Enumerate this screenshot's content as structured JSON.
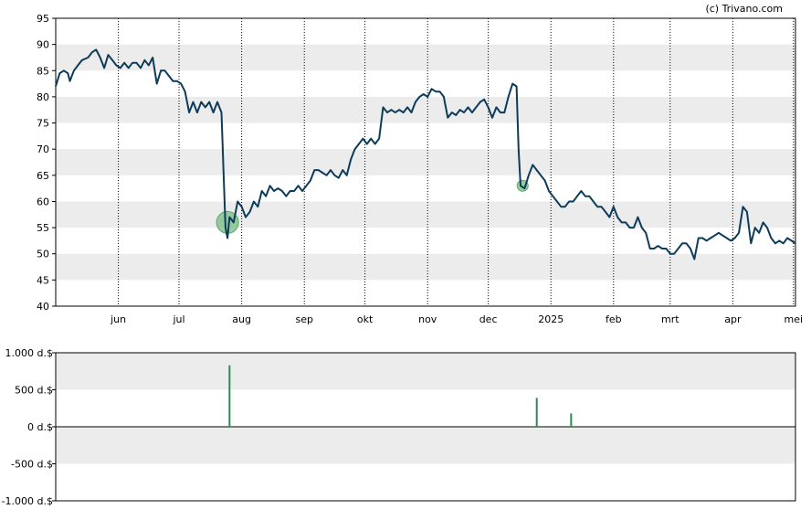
{
  "credit": "(c) Trivano.com",
  "chart_data": [
    {
      "type": "line",
      "title": "",
      "xlabel": "",
      "ylabel": "",
      "ylim": [
        40,
        95
      ],
      "yticks": [
        40,
        45,
        50,
        55,
        60,
        65,
        70,
        75,
        80,
        85,
        90,
        95
      ],
      "x_domain_days": [
        0,
        366
      ],
      "month_ticks": [
        {
          "day": 31,
          "label": "jun"
        },
        {
          "day": 61,
          "label": "jul"
        },
        {
          "day": 92,
          "label": "aug"
        },
        {
          "day": 123,
          "label": "sep"
        },
        {
          "day": 153,
          "label": "okt"
        },
        {
          "day": 184,
          "label": "nov"
        },
        {
          "day": 214,
          "label": "dec"
        },
        {
          "day": 245,
          "label": "2025"
        },
        {
          "day": 276,
          "label": "feb"
        },
        {
          "day": 304,
          "label": "mrt"
        },
        {
          "day": 335,
          "label": "apr"
        },
        {
          "day": 365,
          "label": "mei"
        }
      ],
      "grid": "dotted vertical at months, alternating horizontal bands",
      "line_color": "#0d3b5a",
      "series": [
        {
          "points": [
            [
              0,
              82
            ],
            [
              2,
              84.5
            ],
            [
              4,
              85
            ],
            [
              6,
              84.5
            ],
            [
              7,
              83
            ],
            [
              9,
              85
            ],
            [
              11,
              86
            ],
            [
              13,
              87
            ],
            [
              16,
              87.5
            ],
            [
              18,
              88.5
            ],
            [
              20,
              89
            ],
            [
              22,
              87.5
            ],
            [
              24,
              85.5
            ],
            [
              26,
              88
            ],
            [
              28,
              87
            ],
            [
              30,
              86
            ],
            [
              32,
              85.5
            ],
            [
              34,
              86.5
            ],
            [
              36,
              85.5
            ],
            [
              38,
              86.5
            ],
            [
              40,
              86.5
            ],
            [
              42,
              85.5
            ],
            [
              44,
              87
            ],
            [
              46,
              86
            ],
            [
              48,
              87.5
            ],
            [
              50,
              82.5
            ],
            [
              52,
              85
            ],
            [
              54,
              85
            ],
            [
              56,
              84
            ],
            [
              58,
              83
            ],
            [
              60,
              83
            ],
            [
              62,
              82.5
            ],
            [
              64,
              81
            ],
            [
              66,
              77
            ],
            [
              68,
              79
            ],
            [
              70,
              77
            ],
            [
              72,
              79
            ],
            [
              74,
              78
            ],
            [
              76,
              79
            ],
            [
              78,
              77
            ],
            [
              80,
              79
            ],
            [
              82,
              77
            ],
            [
              84,
              55
            ],
            [
              85,
              53
            ],
            [
              86,
              57
            ],
            [
              88,
              56
            ],
            [
              90,
              60
            ],
            [
              92,
              59
            ],
            [
              94,
              57
            ],
            [
              96,
              58
            ],
            [
              98,
              60
            ],
            [
              100,
              59
            ],
            [
              102,
              62
            ],
            [
              104,
              61
            ],
            [
              106,
              63
            ],
            [
              108,
              62
            ],
            [
              110,
              62.5
            ],
            [
              112,
              62
            ],
            [
              114,
              61
            ],
            [
              116,
              62
            ],
            [
              118,
              62
            ],
            [
              120,
              63
            ],
            [
              122,
              62
            ],
            [
              124,
              63
            ],
            [
              126,
              64
            ],
            [
              128,
              66
            ],
            [
              130,
              66
            ],
            [
              132,
              65.5
            ],
            [
              134,
              65
            ],
            [
              136,
              66
            ],
            [
              138,
              65
            ],
            [
              140,
              64.5
            ],
            [
              142,
              66
            ],
            [
              144,
              65
            ],
            [
              146,
              68
            ],
            [
              148,
              70
            ],
            [
              150,
              71
            ],
            [
              152,
              72
            ],
            [
              154,
              71
            ],
            [
              156,
              72
            ],
            [
              158,
              71
            ],
            [
              160,
              72
            ],
            [
              162,
              78
            ],
            [
              164,
              77
            ],
            [
              166,
              77.5
            ],
            [
              168,
              77
            ],
            [
              170,
              77.5
            ],
            [
              172,
              77
            ],
            [
              174,
              78
            ],
            [
              176,
              77
            ],
            [
              178,
              79
            ],
            [
              180,
              80
            ],
            [
              182,
              80.5
            ],
            [
              184,
              80
            ],
            [
              186,
              81.5
            ],
            [
              188,
              81
            ],
            [
              190,
              81
            ],
            [
              192,
              80
            ],
            [
              194,
              76
            ],
            [
              196,
              77
            ],
            [
              198,
              76.5
            ],
            [
              200,
              77.5
            ],
            [
              202,
              77
            ],
            [
              204,
              78
            ],
            [
              206,
              77
            ],
            [
              208,
              78
            ],
            [
              210,
              79
            ],
            [
              212,
              79.5
            ],
            [
              214,
              78
            ],
            [
              216,
              76
            ],
            [
              218,
              78
            ],
            [
              220,
              77
            ],
            [
              222,
              77
            ],
            [
              224,
              80
            ],
            [
              226,
              82.5
            ],
            [
              228,
              82
            ],
            [
              229,
              70
            ],
            [
              230,
              63
            ],
            [
              232,
              62.5
            ],
            [
              234,
              65
            ],
            [
              236,
              67
            ],
            [
              238,
              66
            ],
            [
              240,
              65
            ],
            [
              242,
              64
            ],
            [
              244,
              62
            ],
            [
              246,
              61
            ],
            [
              248,
              60
            ],
            [
              250,
              59
            ],
            [
              252,
              59
            ],
            [
              254,
              60
            ],
            [
              256,
              60
            ],
            [
              258,
              61
            ],
            [
              260,
              62
            ],
            [
              262,
              61
            ],
            [
              264,
              61
            ],
            [
              266,
              60
            ],
            [
              268,
              59
            ],
            [
              270,
              59
            ],
            [
              272,
              58
            ],
            [
              274,
              57
            ],
            [
              276,
              59
            ],
            [
              278,
              57
            ],
            [
              280,
              56
            ],
            [
              282,
              56
            ],
            [
              284,
              55
            ],
            [
              286,
              55
            ],
            [
              288,
              57
            ],
            [
              290,
              55
            ],
            [
              292,
              54
            ],
            [
              294,
              51
            ],
            [
              296,
              51
            ],
            [
              298,
              51.5
            ],
            [
              300,
              51
            ],
            [
              302,
              51
            ],
            [
              304,
              50
            ],
            [
              306,
              50
            ],
            [
              308,
              51
            ],
            [
              310,
              52
            ],
            [
              312,
              52
            ],
            [
              314,
              51
            ],
            [
              316,
              49
            ],
            [
              318,
              53
            ],
            [
              320,
              53
            ],
            [
              322,
              52.5
            ],
            [
              324,
              53
            ],
            [
              326,
              53.5
            ],
            [
              328,
              54
            ],
            [
              330,
              53.5
            ],
            [
              332,
              53
            ],
            [
              334,
              52.5
            ],
            [
              336,
              53
            ],
            [
              338,
              54
            ],
            [
              340,
              59
            ],
            [
              342,
              58
            ],
            [
              344,
              52
            ],
            [
              346,
              55
            ],
            [
              348,
              54
            ],
            [
              350,
              56
            ],
            [
              352,
              55
            ],
            [
              354,
              53
            ],
            [
              356,
              52
            ],
            [
              358,
              52.5
            ],
            [
              360,
              52
            ],
            [
              362,
              53
            ],
            [
              364,
              52.5
            ],
            [
              366,
              52
            ]
          ]
        }
      ],
      "annotations": [
        {
          "day": 85,
          "value": 56,
          "size": "large"
        },
        {
          "day": 231,
          "value": 63,
          "size": "small"
        }
      ],
      "annotation_color": "#7fbf8a"
    },
    {
      "type": "bar",
      "title": "",
      "xlabel": "",
      "ylabel": "",
      "ylim": [
        -1000,
        1000
      ],
      "yticks": [
        {
          "value": 1000,
          "label": "1.000 d.$"
        },
        {
          "value": 500,
          "label": "500 d.$"
        },
        {
          "value": 0,
          "label": "0 d.$"
        },
        {
          "value": -500,
          "label": "-500 d.$"
        },
        {
          "value": -1000,
          "label": "-1.000 d.$"
        }
      ],
      "x_domain_days": [
        0,
        366
      ],
      "bar_color": "#2e8b57",
      "bars": [
        {
          "day": 86,
          "value": 830
        },
        {
          "day": 238,
          "value": 390
        },
        {
          "day": 255,
          "value": 180
        }
      ]
    }
  ]
}
